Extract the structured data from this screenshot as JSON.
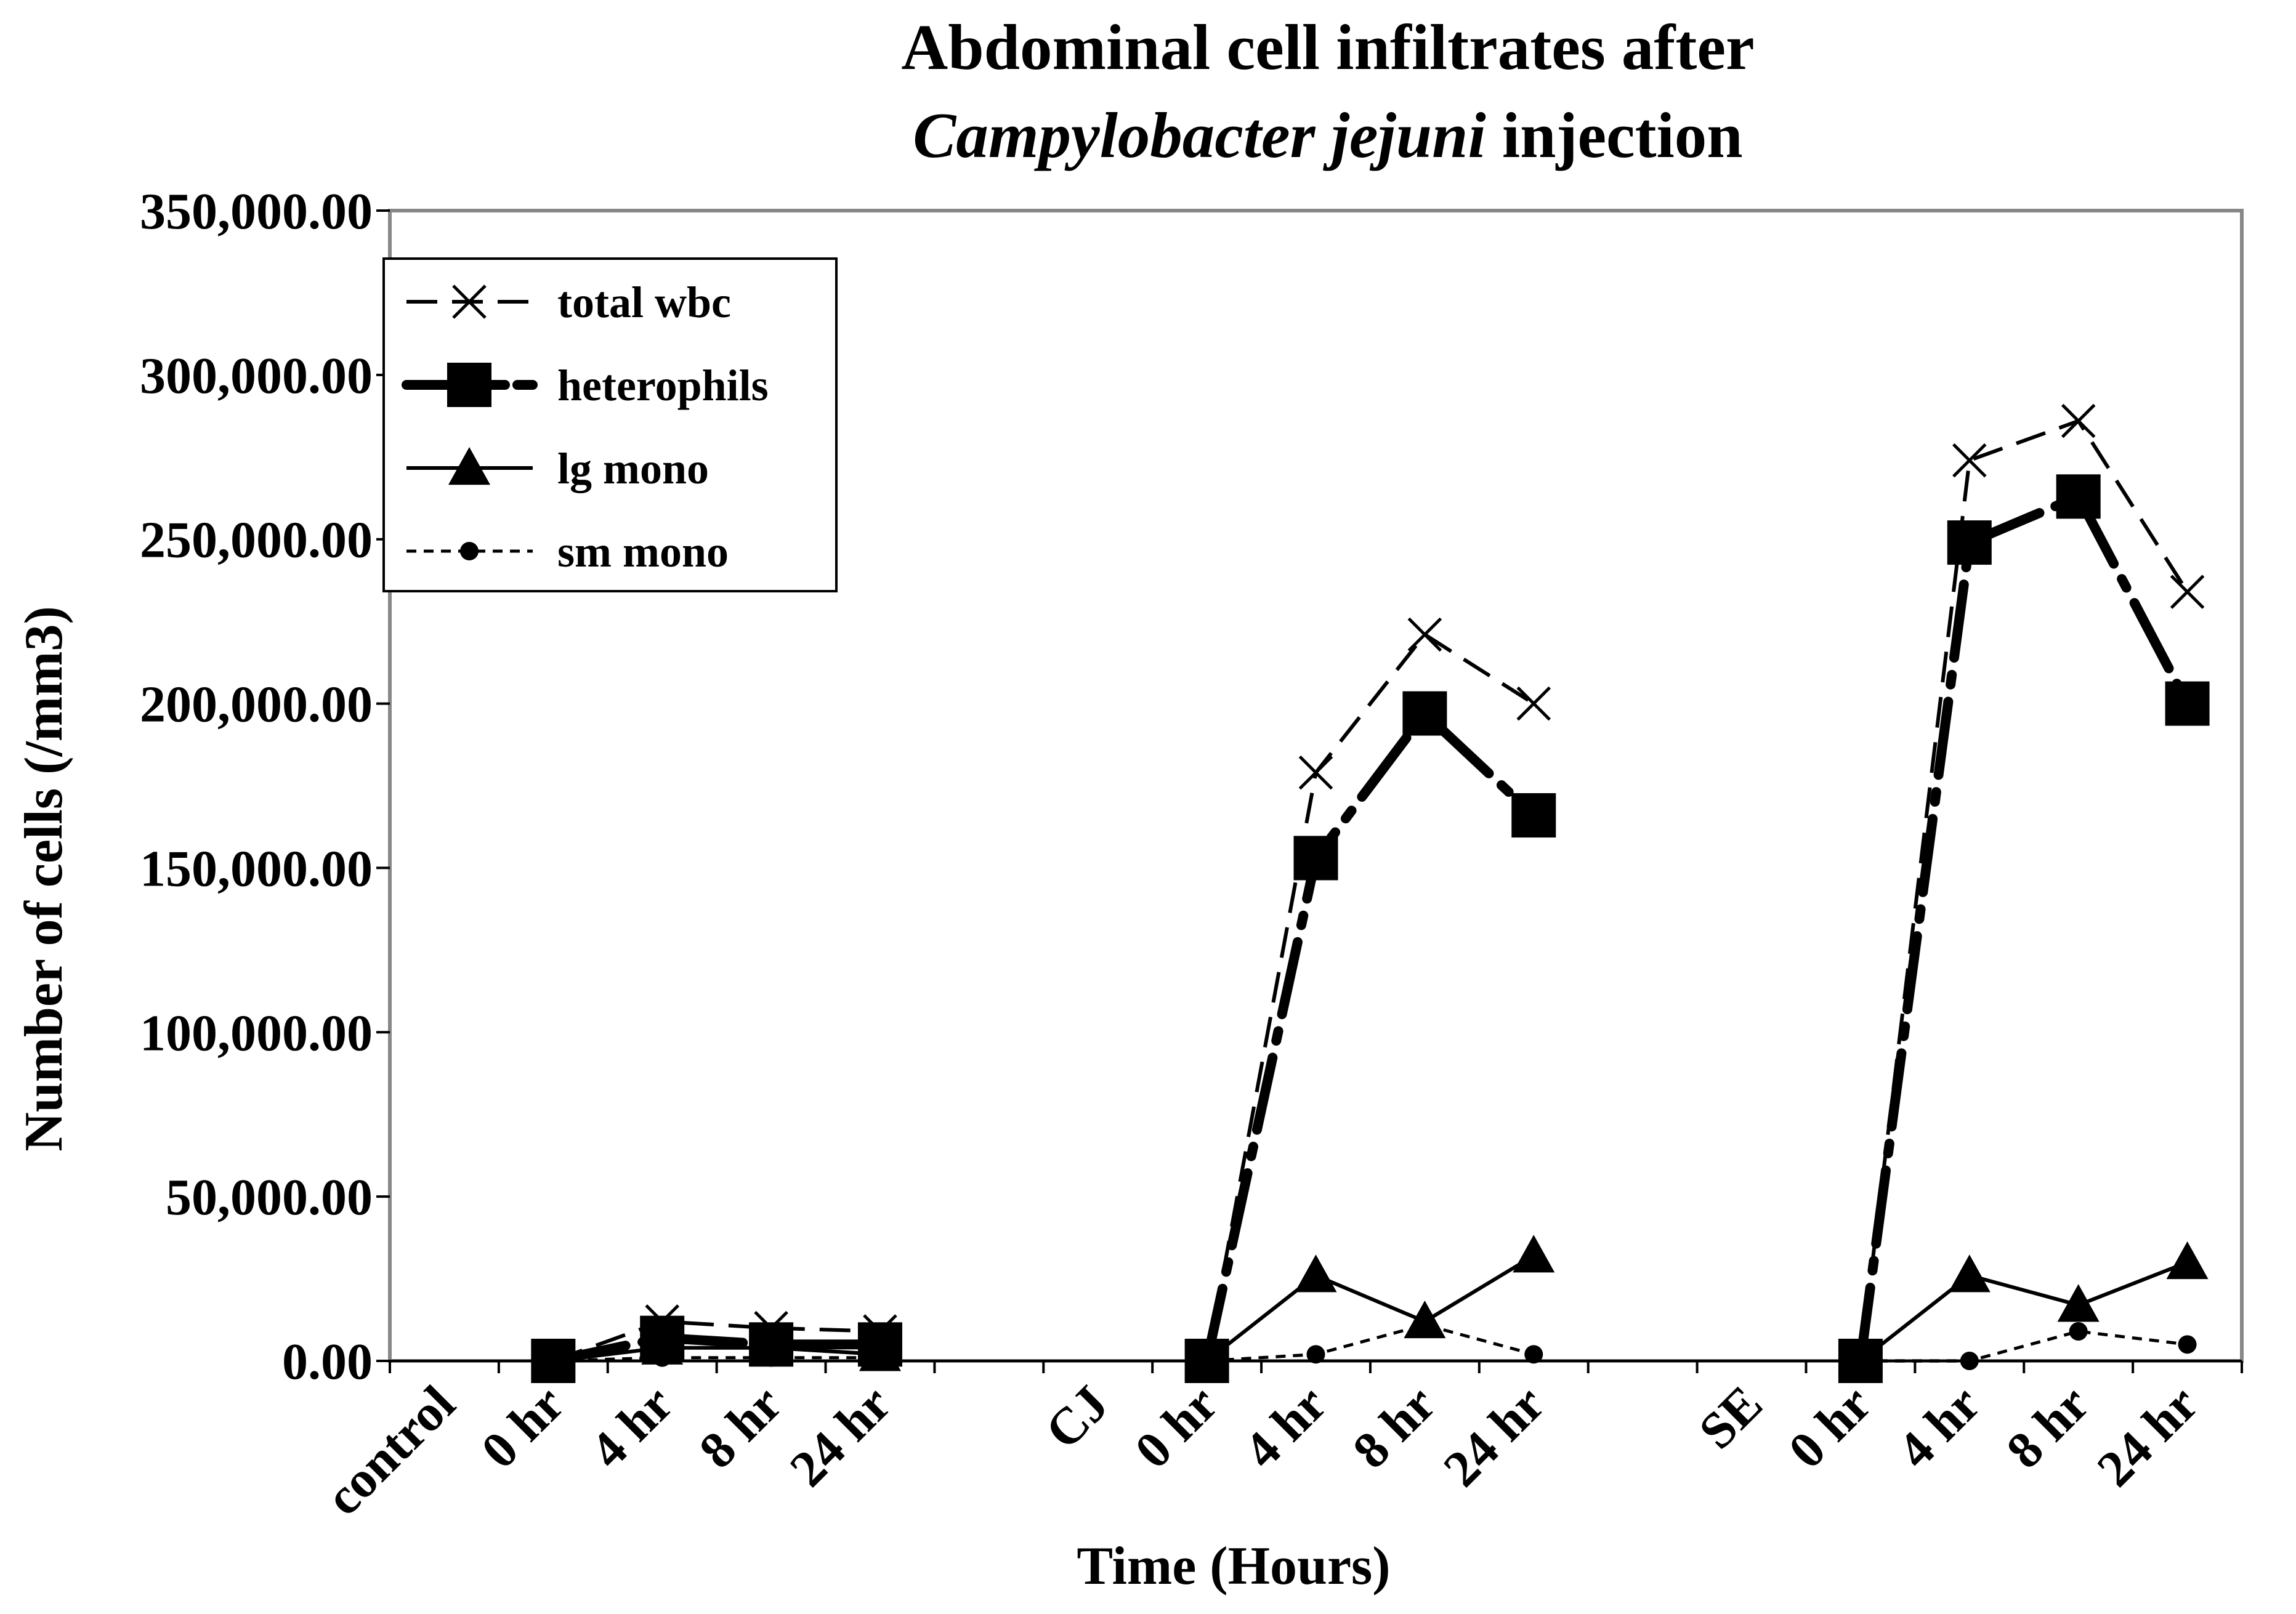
{
  "chart_data": {
    "type": "line",
    "title_line1": "Abdominal cell infiltrates after",
    "title_line2_italic": "Campylobacter jejuni",
    "title_line2_rest": " injection",
    "xlabel": "Time (Hours)",
    "ylabel": "Number of cells (/mm3)",
    "ylim": [
      0,
      350000
    ],
    "yticks": [
      0,
      50000,
      100000,
      150000,
      200000,
      250000,
      300000,
      350000
    ],
    "ytick_labels": [
      "0.00",
      "50,000.00",
      "100,000.00",
      "150,000.00",
      "200,000.00",
      "250,000.00",
      "300,000.00",
      "350,000.00"
    ],
    "categories": [
      "control",
      "0 hr",
      "4 hr",
      "8 hr",
      "24 hr",
      "",
      "CJ",
      "0 hr",
      "4 hr",
      "8 hr",
      "24 hr",
      "",
      "SE",
      "0 hr",
      "4 hr",
      "8 hr",
      "24 hr"
    ],
    "series": [
      {
        "name": "total wbc",
        "style": "long-dash",
        "marker": "x",
        "values": [
          null,
          0,
          12000,
          10000,
          9000,
          null,
          null,
          0,
          179000,
          221000,
          200000,
          null,
          null,
          0,
          274000,
          286000,
          234000
        ]
      },
      {
        "name": "heterophils",
        "style": "thick-dashdot",
        "marker": "square",
        "values": [
          null,
          0,
          7000,
          5000,
          5000,
          null,
          null,
          0,
          153000,
          197000,
          166000,
          null,
          null,
          0,
          249000,
          263000,
          200000
        ]
      },
      {
        "name": "lg mono",
        "style": "solid",
        "marker": "triangle",
        "values": [
          null,
          0,
          4000,
          4000,
          2000,
          null,
          null,
          0,
          26000,
          12000,
          32000,
          null,
          null,
          0,
          26000,
          17000,
          30000
        ]
      },
      {
        "name": "sm mono",
        "style": "short-dash",
        "marker": "circle",
        "values": [
          null,
          0,
          1000,
          1000,
          1000,
          null,
          null,
          0,
          2000,
          11000,
          2000,
          null,
          null,
          0,
          0,
          9000,
          5000
        ]
      }
    ],
    "legend_position": "top-left"
  }
}
